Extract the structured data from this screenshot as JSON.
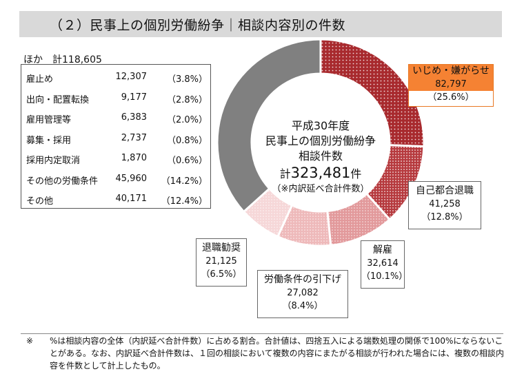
{
  "title": "（２）民事上の個別労働紛争｜相談内容別の件数",
  "others": {
    "heading": "ほか　計118,605",
    "items": [
      {
        "label": "雇止め",
        "value": "12,307",
        "pct": "（3.8%）"
      },
      {
        "label": "出向・配置転換",
        "value": "9,177",
        "pct": "（2.8%）"
      },
      {
        "label": "雇用管理等",
        "value": "6,383",
        "pct": "（2.0%）"
      },
      {
        "label": "募集・採用",
        "value": "2,737",
        "pct": "（0.8%）"
      },
      {
        "label": "採用内定取消",
        "value": "1,870",
        "pct": "（0.6%）"
      },
      {
        "label": "その他の労働条件",
        "value": "45,960",
        "pct": "（14.2%）"
      },
      {
        "label": "その他",
        "value": "40,171",
        "pct": "（12.4%）"
      }
    ]
  },
  "center": {
    "line1": "平成30年度",
    "line2": "民事上の個別労働紛争",
    "line3": "相談件数",
    "total_prefix": "計",
    "total_value": "323,481",
    "total_suffix": "件",
    "note": "（※内訳延べ合計件数）"
  },
  "chart_data": {
    "type": "pie",
    "variant": "donut",
    "total": 323481,
    "slices": [
      {
        "name": "いじめ・嫌がらせ",
        "value": 82797,
        "pct": 25.6,
        "color": "#a82a2e",
        "value_label": "82,797",
        "pct_label": "（25.6%）"
      },
      {
        "name": "自己都合退職",
        "value": 41258,
        "pct": 12.8,
        "color": "#b63a3e",
        "value_label": "41,258",
        "pct_label": "（12.8%）"
      },
      {
        "name": "解雇",
        "value": 32614,
        "pct": 10.1,
        "color": "#e2999b",
        "value_label": "32,614",
        "pct_label": "（10.1%）"
      },
      {
        "name": "労働条件の引下げ",
        "value": 27082,
        "pct": 8.4,
        "color": "#eeb9ba",
        "value_label": "27,082",
        "pct_label": "（8.4%）"
      },
      {
        "name": "退職勧奨",
        "value": 21125,
        "pct": 6.5,
        "color": "#f6d7d8",
        "value_label": "21,125",
        "pct_label": "（6.5%）"
      },
      {
        "name": "ほか",
        "value": 118605,
        "pct": 36.7,
        "color": "#808080"
      }
    ],
    "highlight_color": "#f58233"
  },
  "footnote": {
    "mark": "※",
    "text": "%は相談内容の全体（内訳延べ合計件数）に占める割合。合計値は、四捨五入による端数処理の関係で100%にならないことがある。なお、内訳延べ合計件数は、１回の相談において複数の内容にまたがる相談が行われた場合には、複数の相談内容を件数として計上したもの。"
  }
}
